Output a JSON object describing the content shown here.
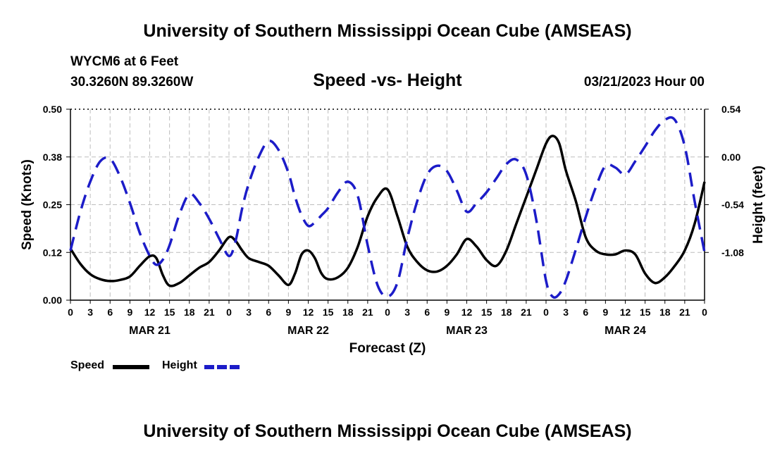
{
  "header": {
    "title": "University of Southern Mississippi Ocean Cube (AMSEAS)",
    "station": "WYCM6 at 6 Feet",
    "coords": "30.3260N  89.3260W",
    "subtitle": "Speed -vs- Height",
    "datetime": "03/21/2023 Hour 00"
  },
  "footer": {
    "title": "University of Southern Mississippi Ocean Cube (AMSEAS)"
  },
  "legend": {
    "speed_label": "Speed",
    "height_label": "Height"
  },
  "colors": {
    "speed": "#000000",
    "height": "#1c1cc8",
    "grid": "#bdbdbd"
  },
  "chart_data": {
    "type": "line",
    "xlabel": "Forecast (Z)",
    "ylabel": "Speed (Knots)",
    "y2label": "Height (feet)",
    "ylim": [
      0,
      0.5
    ],
    "y2lim": [
      -1.62,
      0.54
    ],
    "yticks": [
      "0.00",
      "0.12",
      "0.25",
      "0.38",
      "0.50"
    ],
    "yticks_values": [
      0,
      0.125,
      0.25,
      0.375,
      0.5
    ],
    "y2ticks": [
      "-1.08",
      "-0.54",
      "0.00",
      "0.54"
    ],
    "y2ticks_values": [
      -1.08,
      -0.54,
      0,
      0.54
    ],
    "xlim": [
      0,
      96
    ],
    "xticks_hours": [
      0,
      3,
      6,
      9,
      12,
      15,
      18,
      21,
      24,
      27,
      30,
      33,
      36,
      39,
      42,
      45,
      48,
      51,
      54,
      57,
      60,
      63,
      66,
      69,
      72,
      75,
      78,
      81,
      84,
      87,
      90,
      93,
      96
    ],
    "xtick_labels": [
      "0",
      "3",
      "6",
      "9",
      "12",
      "15",
      "18",
      "21",
      "0",
      "3",
      "6",
      "9",
      "12",
      "15",
      "18",
      "21",
      "0",
      "3",
      "6",
      "9",
      "12",
      "15",
      "18",
      "21",
      "0",
      "3",
      "6",
      "9",
      "12",
      "15",
      "18",
      "21",
      "0"
    ],
    "day_labels": [
      {
        "hour": 12,
        "label": "MAR 21"
      },
      {
        "hour": 36,
        "label": "MAR 22"
      },
      {
        "hour": 60,
        "label": "MAR 23"
      },
      {
        "hour": 84,
        "label": "MAR 24"
      }
    ],
    "series": [
      {
        "name": "Speed",
        "axis": "left",
        "x": [
          0,
          1.5,
          3,
          4.5,
          6,
          7.5,
          9,
          10.5,
          12,
          13,
          14,
          15,
          16.5,
          18,
          19.5,
          21,
          22.5,
          24,
          25,
          26,
          27,
          28.5,
          30,
          31.5,
          33,
          34,
          35,
          36,
          37,
          38,
          39,
          40.5,
          42,
          43.5,
          45,
          46.5,
          48,
          49.5,
          51,
          52.5,
          54,
          55.5,
          57,
          58.5,
          60,
          61.5,
          63,
          64.5,
          66,
          67.5,
          69,
          70.5,
          72,
          73,
          74,
          75,
          76.5,
          78,
          79.5,
          81,
          82.5,
          84,
          85.5,
          87,
          88.5,
          90,
          91.5,
          93,
          94.5,
          96
        ],
        "values": [
          0.135,
          0.095,
          0.068,
          0.055,
          0.05,
          0.053,
          0.062,
          0.09,
          0.115,
          0.11,
          0.065,
          0.038,
          0.045,
          0.065,
          0.085,
          0.1,
          0.13,
          0.165,
          0.155,
          0.13,
          0.11,
          0.1,
          0.09,
          0.065,
          0.04,
          0.07,
          0.12,
          0.13,
          0.11,
          0.07,
          0.055,
          0.06,
          0.085,
          0.14,
          0.22,
          0.27,
          0.29,
          0.22,
          0.14,
          0.1,
          0.078,
          0.075,
          0.09,
          0.12,
          0.16,
          0.14,
          0.105,
          0.09,
          0.13,
          0.2,
          0.27,
          0.34,
          0.41,
          0.43,
          0.41,
          0.34,
          0.26,
          0.165,
          0.13,
          0.12,
          0.12,
          0.13,
          0.12,
          0.07,
          0.045,
          0.06,
          0.09,
          0.13,
          0.2,
          0.31
        ]
      },
      {
        "name": "Height",
        "axis": "right",
        "x": [
          0,
          1.5,
          3,
          4.5,
          6,
          7.5,
          9,
          10.5,
          12,
          13,
          14,
          15,
          16.5,
          18,
          19.5,
          21,
          22.5,
          24,
          25,
          26,
          27,
          28.5,
          30,
          31.5,
          33,
          34,
          35,
          36,
          37,
          38,
          39,
          40.5,
          42,
          43.5,
          45,
          46.5,
          48,
          49.5,
          51,
          52.5,
          54,
          55.5,
          57,
          58.5,
          60,
          61.5,
          63,
          64.5,
          66,
          67.5,
          69,
          70.5,
          72,
          73,
          74,
          75,
          76.5,
          78,
          79.5,
          81,
          82.5,
          84,
          85.5,
          87,
          88.5,
          90,
          91.5,
          93,
          94.5,
          96
        ],
        "values": [
          -1.06,
          -0.62,
          -0.28,
          -0.05,
          -0.02,
          -0.22,
          -0.52,
          -0.86,
          -1.12,
          -1.22,
          -1.16,
          -1.0,
          -0.65,
          -0.42,
          -0.52,
          -0.7,
          -0.92,
          -1.12,
          -0.95,
          -0.58,
          -0.3,
          0.0,
          0.18,
          0.08,
          -0.18,
          -0.45,
          -0.66,
          -0.78,
          -0.74,
          -0.66,
          -0.58,
          -0.4,
          -0.28,
          -0.44,
          -1.0,
          -1.45,
          -1.58,
          -1.42,
          -0.92,
          -0.5,
          -0.2,
          -0.1,
          -0.16,
          -0.38,
          -0.62,
          -0.52,
          -0.4,
          -0.24,
          -0.08,
          -0.03,
          -0.2,
          -0.7,
          -1.4,
          -1.58,
          -1.55,
          -1.4,
          -1.05,
          -0.68,
          -0.35,
          -0.1,
          -0.12,
          -0.2,
          -0.05,
          0.12,
          0.3,
          0.42,
          0.42,
          0.12,
          -0.5,
          -1.08
        ]
      }
    ]
  }
}
